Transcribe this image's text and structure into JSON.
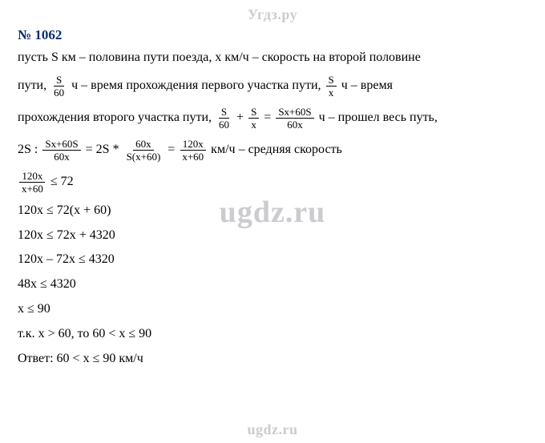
{
  "watermark": {
    "top": "Угдз.ру",
    "center": "ugdz.ru",
    "bottom": "ugdz.ru",
    "top_fontsize": 18,
    "center_fontsize": 38,
    "bottom_fontsize": 18,
    "color": "#ccccd0"
  },
  "title": {
    "text": "№ 1062",
    "color": "#0b2f6b",
    "fontsize": 17
  },
  "body_fontsize": 16,
  "frac_fontsize": 13,
  "colors": {
    "text": "#000000",
    "background": "#ffffff"
  },
  "lines": {
    "l1a": "пусть S км – половина пути поезда, х км/ч – скорость на второй половине",
    "l2a": "пути, ",
    "l2b": " ч – время прохождения первого участка пути, ",
    "l2c": " ч – время",
    "l3a": "прохождения второго участка пути, ",
    "l3b": " + ",
    "l3c": " = ",
    "l3d": " ч – прошел весь путь,",
    "l4a": "2S : ",
    "l4b": " = 2S * ",
    "l4c": " = ",
    "l4d": " км/ч – средняя скорость",
    "l5b": " ≤ 72",
    "l6": "120x ≤ 72(x + 60)",
    "l7": "120x ≤ 72x + 4320",
    "l8": "120x – 72x ≤ 4320",
    "l9": "48x ≤ 4320",
    "l10": "x ≤ 90",
    "l11": "т.к. x > 60, то 60 < x ≤ 90",
    "l12": "Ответ: 60 < x ≤ 90 км/ч"
  },
  "fracs": {
    "f_S_60": {
      "num": "S",
      "den": "60"
    },
    "f_S_x": {
      "num": "S",
      "den": "x"
    },
    "f_Sx60S_60x": {
      "num": "Sx+60S",
      "den": "60x"
    },
    "f_60x_Sx60": {
      "num": "60x",
      "den": "S(x+60)"
    },
    "f_120x_x60": {
      "num": "120x",
      "den": "x+60"
    }
  }
}
